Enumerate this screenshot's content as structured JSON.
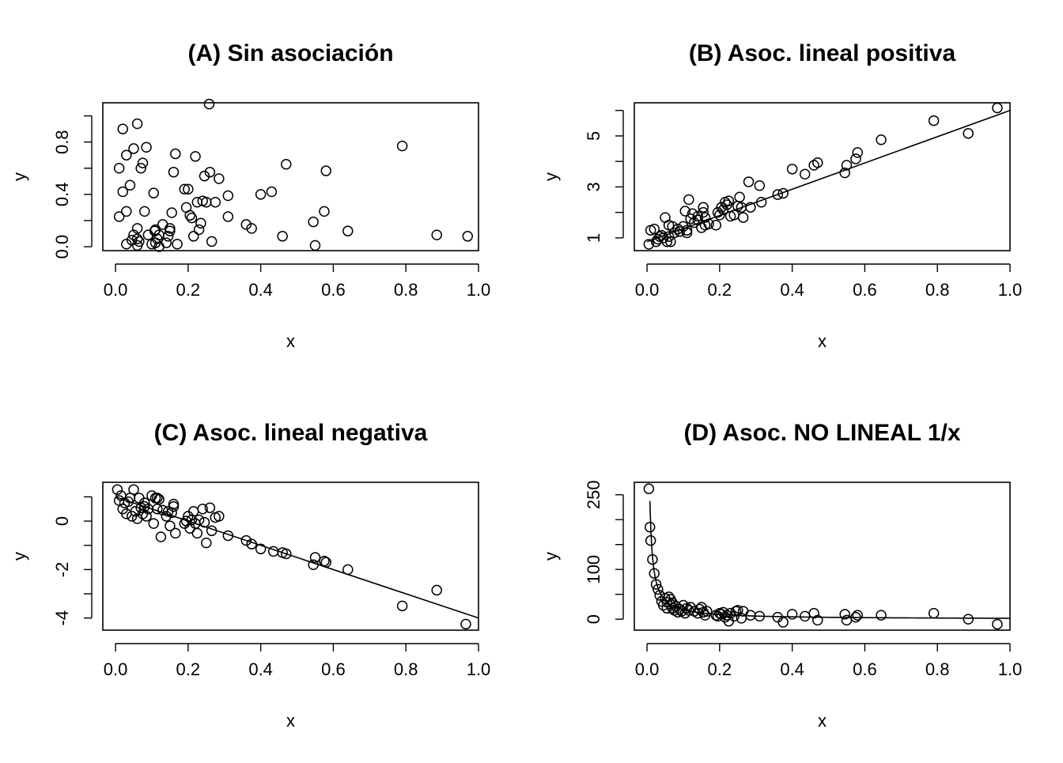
{
  "chart_data": [
    {
      "type": "scatter",
      "title": "(A) Sin asociación",
      "xlabel": "x",
      "ylabel": "y",
      "xlim": [
        -0.035,
        1.0
      ],
      "ylim": [
        -0.03,
        1.1
      ],
      "xticks": [
        0.0,
        0.2,
        0.4,
        0.6,
        0.8,
        1.0
      ],
      "xtick_labels": [
        "0.0",
        "0.2",
        "0.4",
        "0.6",
        "0.8",
        "1.0"
      ],
      "yticks": [
        0.0,
        0.2,
        0.4,
        0.6,
        0.8,
        1.0
      ],
      "ytick_labels": [
        "0.0",
        "",
        "0.4",
        "",
        "0.8",
        ""
      ],
      "points": [
        [
          0.01,
          0.6
        ],
        [
          0.01,
          0.23
        ],
        [
          0.02,
          0.9
        ],
        [
          0.02,
          0.42
        ],
        [
          0.03,
          0.27
        ],
        [
          0.03,
          0.02
        ],
        [
          0.03,
          0.7
        ],
        [
          0.04,
          0.47
        ],
        [
          0.05,
          0.75
        ],
        [
          0.05,
          0.09
        ],
        [
          0.06,
          0.14
        ],
        [
          0.06,
          0.94
        ],
        [
          0.06,
          0.06
        ],
        [
          0.065,
          0.04
        ],
        [
          0.07,
          0.6
        ],
        [
          0.075,
          0.64
        ],
        [
          0.08,
          0.27
        ],
        [
          0.085,
          0.76
        ],
        [
          0.09,
          0.09
        ],
        [
          0.1,
          0.02
        ],
        [
          0.105,
          0.41
        ],
        [
          0.11,
          0.13
        ],
        [
          0.115,
          0.06
        ],
        [
          0.12,
          0.0
        ],
        [
          0.12,
          0.09
        ],
        [
          0.13,
          0.17
        ],
        [
          0.14,
          0.03
        ],
        [
          0.145,
          0.08
        ],
        [
          0.15,
          0.14
        ],
        [
          0.155,
          0.26
        ],
        [
          0.16,
          0.57
        ],
        [
          0.165,
          0.71
        ],
        [
          0.17,
          0.02
        ],
        [
          0.19,
          0.44
        ],
        [
          0.195,
          0.3
        ],
        [
          0.2,
          0.44
        ],
        [
          0.205,
          0.24
        ],
        [
          0.21,
          0.22
        ],
        [
          0.215,
          0.08
        ],
        [
          0.22,
          0.69
        ],
        [
          0.225,
          0.34
        ],
        [
          0.23,
          0.13
        ],
        [
          0.235,
          0.18
        ],
        [
          0.24,
          0.35
        ],
        [
          0.245,
          0.54
        ],
        [
          0.25,
          0.34
        ],
        [
          0.26,
          0.57
        ],
        [
          0.265,
          0.04
        ],
        [
          0.275,
          0.34
        ],
        [
          0.285,
          0.52
        ],
        [
          0.31,
          0.39
        ],
        [
          0.31,
          0.23
        ],
        [
          0.36,
          0.17
        ],
        [
          0.375,
          0.14
        ],
        [
          0.4,
          0.4
        ],
        [
          0.43,
          0.42
        ],
        [
          0.46,
          0.08
        ],
        [
          0.47,
          0.63
        ],
        [
          0.545,
          0.19
        ],
        [
          0.55,
          0.01
        ],
        [
          0.575,
          0.27
        ],
        [
          0.58,
          0.58
        ],
        [
          0.64,
          0.12
        ],
        [
          0.79,
          0.77
        ],
        [
          0.885,
          0.09
        ],
        [
          0.97,
          0.08
        ],
        [
          0.258,
          1.09
        ],
        [
          0.108,
          0.12
        ],
        [
          0.15,
          0.12
        ],
        [
          0.06,
          0.01
        ],
        [
          0.045,
          0.05
        ],
        [
          0.11,
          0.03
        ]
      ]
    },
    {
      "type": "scatter",
      "title": "(B) Asoc. lineal positiva",
      "xlabel": "x",
      "ylabel": "y",
      "xlim": [
        -0.035,
        1.0
      ],
      "ylim": [
        0.5,
        6.3
      ],
      "xticks": [
        0.0,
        0.2,
        0.4,
        0.6,
        0.8,
        1.0
      ],
      "xtick_labels": [
        "0.0",
        "0.2",
        "0.4",
        "0.6",
        "0.8",
        "1.0"
      ],
      "yticks": [
        1,
        2,
        3,
        4,
        5,
        6
      ],
      "ytick_labels": [
        "1",
        "",
        "3",
        "",
        "5",
        ""
      ],
      "fit_line": {
        "intercept": 0.85,
        "slope": 5.15
      },
      "points": [
        [
          0.005,
          0.75
        ],
        [
          0.01,
          1.3
        ],
        [
          0.02,
          1.35
        ],
        [
          0.025,
          0.85
        ],
        [
          0.03,
          0.95
        ],
        [
          0.035,
          1.05
        ],
        [
          0.04,
          1.1
        ],
        [
          0.05,
          1.8
        ],
        [
          0.055,
          0.85
        ],
        [
          0.06,
          1.5
        ],
        [
          0.065,
          0.85
        ],
        [
          0.07,
          1.45
        ],
        [
          0.075,
          1.2
        ],
        [
          0.085,
          1.35
        ],
        [
          0.09,
          1.25
        ],
        [
          0.1,
          1.45
        ],
        [
          0.105,
          2.05
        ],
        [
          0.11,
          1.2
        ],
        [
          0.115,
          2.5
        ],
        [
          0.12,
          1.75
        ],
        [
          0.125,
          1.95
        ],
        [
          0.13,
          1.6
        ],
        [
          0.14,
          1.7
        ],
        [
          0.15,
          1.4
        ],
        [
          0.155,
          2.2
        ],
        [
          0.16,
          1.8
        ],
        [
          0.17,
          1.55
        ],
        [
          0.19,
          1.5
        ],
        [
          0.195,
          2.0
        ],
        [
          0.2,
          1.9
        ],
        [
          0.205,
          2.2
        ],
        [
          0.21,
          2.1
        ],
        [
          0.215,
          2.4
        ],
        [
          0.22,
          2.3
        ],
        [
          0.225,
          2.45
        ],
        [
          0.23,
          1.85
        ],
        [
          0.24,
          1.9
        ],
        [
          0.25,
          2.25
        ],
        [
          0.255,
          2.6
        ],
        [
          0.26,
          2.2
        ],
        [
          0.265,
          1.8
        ],
        [
          0.28,
          3.2
        ],
        [
          0.285,
          2.2
        ],
        [
          0.31,
          3.05
        ],
        [
          0.315,
          2.4
        ],
        [
          0.36,
          2.7
        ],
        [
          0.375,
          2.75
        ],
        [
          0.4,
          3.7
        ],
        [
          0.435,
          3.5
        ],
        [
          0.46,
          3.85
        ],
        [
          0.47,
          3.95
        ],
        [
          0.545,
          3.55
        ],
        [
          0.55,
          3.85
        ],
        [
          0.575,
          4.1
        ],
        [
          0.58,
          4.35
        ],
        [
          0.645,
          4.85
        ],
        [
          0.79,
          5.6
        ],
        [
          0.885,
          5.1
        ],
        [
          0.965,
          6.1
        ],
        [
          0.11,
          1.3
        ],
        [
          0.14,
          1.85
        ],
        [
          0.155,
          2.0
        ],
        [
          0.06,
          1.05
        ],
        [
          0.045,
          1.0
        ],
        [
          0.16,
          1.5
        ]
      ]
    },
    {
      "type": "scatter",
      "title": "(C) Asoc. lineal negativa",
      "xlabel": "x",
      "ylabel": "y",
      "xlim": [
        -0.035,
        1.0
      ],
      "ylim": [
        -4.5,
        1.6
      ],
      "xticks": [
        0.0,
        0.2,
        0.4,
        0.6,
        0.8,
        1.0
      ],
      "xtick_labels": [
        "0.0",
        "0.2",
        "0.4",
        "0.6",
        "0.8",
        "1.0"
      ],
      "yticks": [
        -4,
        -3,
        -2,
        -1,
        0,
        1
      ],
      "ytick_labels": [
        "-4",
        "",
        "-2",
        "",
        "0",
        ""
      ],
      "fit_line": {
        "intercept": 1.0,
        "slope": -5.0
      },
      "points": [
        [
          0.005,
          1.3
        ],
        [
          0.01,
          0.85
        ],
        [
          0.015,
          1.05
        ],
        [
          0.02,
          0.5
        ],
        [
          0.025,
          0.75
        ],
        [
          0.03,
          0.3
        ],
        [
          0.035,
          0.8
        ],
        [
          0.04,
          0.95
        ],
        [
          0.045,
          0.2
        ],
        [
          0.05,
          1.3
        ],
        [
          0.055,
          0.4
        ],
        [
          0.06,
          0.1
        ],
        [
          0.065,
          0.95
        ],
        [
          0.07,
          0.55
        ],
        [
          0.075,
          0.3
        ],
        [
          0.08,
          0.75
        ],
        [
          0.085,
          0.2
        ],
        [
          0.09,
          0.5
        ],
        [
          0.1,
          1.05
        ],
        [
          0.105,
          -0.1
        ],
        [
          0.11,
          0.95
        ],
        [
          0.115,
          0.5
        ],
        [
          0.12,
          0.9
        ],
        [
          0.125,
          -0.65
        ],
        [
          0.13,
          0.45
        ],
        [
          0.14,
          0.2
        ],
        [
          0.145,
          0.4
        ],
        [
          0.15,
          -0.2
        ],
        [
          0.155,
          0.35
        ],
        [
          0.16,
          0.7
        ],
        [
          0.165,
          -0.5
        ],
        [
          0.19,
          -0.1
        ],
        [
          0.195,
          0.0
        ],
        [
          0.2,
          0.2
        ],
        [
          0.205,
          -0.3
        ],
        [
          0.21,
          0.05
        ],
        [
          0.215,
          0.4
        ],
        [
          0.22,
          -0.1
        ],
        [
          0.225,
          -0.5
        ],
        [
          0.23,
          0.05
        ],
        [
          0.24,
          0.5
        ],
        [
          0.245,
          -0.05
        ],
        [
          0.25,
          -0.9
        ],
        [
          0.26,
          0.55
        ],
        [
          0.265,
          -0.4
        ],
        [
          0.275,
          0.15
        ],
        [
          0.285,
          0.2
        ],
        [
          0.31,
          -0.6
        ],
        [
          0.36,
          -0.8
        ],
        [
          0.375,
          -0.95
        ],
        [
          0.4,
          -1.15
        ],
        [
          0.435,
          -1.25
        ],
        [
          0.46,
          -1.3
        ],
        [
          0.47,
          -1.35
        ],
        [
          0.545,
          -1.8
        ],
        [
          0.55,
          -1.5
        ],
        [
          0.575,
          -1.65
        ],
        [
          0.58,
          -1.7
        ],
        [
          0.64,
          -2.0
        ],
        [
          0.79,
          -3.5
        ],
        [
          0.885,
          -2.85
        ],
        [
          0.965,
          -4.25
        ],
        [
          0.115,
          0.95
        ],
        [
          0.16,
          0.6
        ],
        [
          0.08,
          0.6
        ]
      ]
    },
    {
      "type": "scatter",
      "title": "(D) Asoc. NO LINEAL 1/x",
      "xlabel": "x",
      "ylabel": "y",
      "xlim": [
        -0.035,
        1.0
      ],
      "ylim": [
        -22,
        275
      ],
      "xticks": [
        0.0,
        0.2,
        0.4,
        0.6,
        0.8,
        1.0
      ],
      "xtick_labels": [
        "0.0",
        "0.2",
        "0.4",
        "0.6",
        "0.8",
        "1.0"
      ],
      "yticks": [
        0,
        50,
        100,
        150,
        200,
        250
      ],
      "ytick_labels": [
        "0",
        "",
        "100",
        "",
        "",
        "250"
      ],
      "fit_curve": {
        "form": "a/x",
        "a": 1.9,
        "xmin": 0.008,
        "xmax": 1.0
      },
      "points": [
        [
          0.005,
          262
        ],
        [
          0.008,
          185
        ],
        [
          0.01,
          158
        ],
        [
          0.015,
          120
        ],
        [
          0.02,
          92
        ],
        [
          0.025,
          70
        ],
        [
          0.03,
          60
        ],
        [
          0.035,
          48
        ],
        [
          0.04,
          36
        ],
        [
          0.045,
          28
        ],
        [
          0.05,
          42
        ],
        [
          0.055,
          34
        ],
        [
          0.06,
          45
        ],
        [
          0.065,
          30
        ],
        [
          0.07,
          22
        ],
        [
          0.075,
          18
        ],
        [
          0.08,
          26
        ],
        [
          0.085,
          14
        ],
        [
          0.09,
          20
        ],
        [
          0.1,
          28
        ],
        [
          0.105,
          12
        ],
        [
          0.11,
          22
        ],
        [
          0.115,
          18
        ],
        [
          0.12,
          24
        ],
        [
          0.13,
          16
        ],
        [
          0.14,
          12
        ],
        [
          0.145,
          20
        ],
        [
          0.15,
          24
        ],
        [
          0.155,
          14
        ],
        [
          0.16,
          8
        ],
        [
          0.165,
          16
        ],
        [
          0.19,
          8
        ],
        [
          0.195,
          6
        ],
        [
          0.2,
          12
        ],
        [
          0.205,
          10
        ],
        [
          0.21,
          14
        ],
        [
          0.215,
          4
        ],
        [
          0.22,
          8
        ],
        [
          0.225,
          -4
        ],
        [
          0.23,
          12
        ],
        [
          0.24,
          6
        ],
        [
          0.245,
          16
        ],
        [
          0.25,
          18
        ],
        [
          0.26,
          2
        ],
        [
          0.265,
          16
        ],
        [
          0.285,
          8
        ],
        [
          0.31,
          6
        ],
        [
          0.36,
          4
        ],
        [
          0.375,
          -6
        ],
        [
          0.4,
          10
        ],
        [
          0.435,
          6
        ],
        [
          0.46,
          12
        ],
        [
          0.47,
          -2
        ],
        [
          0.545,
          10
        ],
        [
          0.55,
          -2
        ],
        [
          0.575,
          4
        ],
        [
          0.58,
          8
        ],
        [
          0.645,
          8
        ],
        [
          0.79,
          12
        ],
        [
          0.885,
          0
        ],
        [
          0.965,
          -10
        ],
        [
          0.055,
          22
        ],
        [
          0.065,
          40
        ],
        [
          0.07,
          33
        ],
        [
          0.095,
          16
        ]
      ]
    }
  ]
}
